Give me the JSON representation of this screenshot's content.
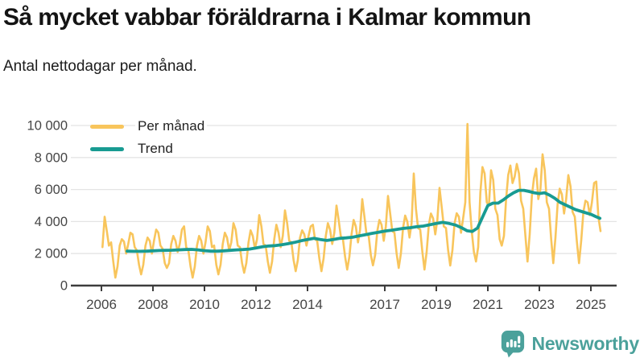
{
  "header": {
    "title": "Så mycket vabbar föräldrarna i Kalmar kommun",
    "subtitle": "Antal nettodagar per månad."
  },
  "footer": {
    "brand": "Newsworthy",
    "brand_color": "#4BA19B",
    "logo_icon": "bar-chart-speech-bubble-icon"
  },
  "chart_data": {
    "type": "line",
    "title": "Så mycket vabbar föräldrarna i Kalmar kommun",
    "subtitle": "Antal nettodagar per månad.",
    "xlabel": "",
    "ylabel": "",
    "ylim": [
      0,
      10000
    ],
    "yticks": [
      0,
      2000,
      4000,
      6000,
      8000,
      10000
    ],
    "ytick_labels": [
      "0",
      "2 000",
      "4 000",
      "6 000",
      "8 000",
      "10 000"
    ],
    "xticks": [
      2006,
      2008,
      2010,
      2012,
      2014,
      2017,
      2019,
      2021,
      2023,
      2025
    ],
    "xtick_labels": [
      "2006",
      "2008",
      "2010",
      "2012",
      "2014",
      "2017",
      "2019",
      "2021",
      "2023",
      "2025"
    ],
    "grid": "horizontal",
    "legend_position": "top-left",
    "style": {
      "grid_color": "#e4e4e4",
      "axis_color": "#3c3c3c",
      "tick_label_color": "#454545"
    },
    "series": [
      {
        "name": "Per månad",
        "color": "#F8C55C",
        "frequency": "monthly",
        "start_year": 2006,
        "start_month": 1,
        "values": [
          2400,
          4300,
          3400,
          2500,
          2700,
          1500,
          500,
          1200,
          2500,
          2900,
          2750,
          2000,
          2600,
          3300,
          3200,
          2400,
          2200,
          1300,
          700,
          1300,
          2500,
          3000,
          2800,
          2000,
          2800,
          3500,
          3300,
          2500,
          2300,
          1400,
          1100,
          1400,
          2600,
          3100,
          2800,
          2100,
          2600,
          3500,
          3700,
          2400,
          2200,
          1200,
          500,
          1200,
          2500,
          3100,
          2800,
          2000,
          2700,
          3700,
          3400,
          2400,
          2500,
          1300,
          700,
          1300,
          2600,
          3300,
          3000,
          2200,
          2700,
          3900,
          3500,
          2500,
          2400,
          1400,
          800,
          1400,
          2700,
          3450,
          3100,
          2300,
          2900,
          4400,
          3700,
          2600,
          2500,
          1500,
          800,
          1500,
          2900,
          3800,
          3300,
          2400,
          3100,
          4700,
          3900,
          2800,
          2700,
          1600,
          900,
          1600,
          3000,
          3450,
          3200,
          2500,
          3100,
          3700,
          3800,
          2900,
          2800,
          1700,
          900,
          1700,
          3100,
          3900,
          3500,
          2600,
          3300,
          5000,
          4100,
          3100,
          2900,
          1800,
          1000,
          1800,
          3200,
          4100,
          3700,
          2700,
          3500,
          5400,
          4300,
          3200,
          3100,
          1900,
          1260,
          1900,
          3400,
          4100,
          3800,
          2800,
          3700,
          5600,
          4500,
          3400,
          3300,
          2000,
          1100,
          2000,
          3600,
          4370,
          4000,
          3000,
          3900,
          7000,
          4800,
          3600,
          3500,
          2100,
          1000,
          2100,
          3800,
          4500,
          4200,
          3200,
          4100,
          6100,
          4900,
          3700,
          3600,
          2200,
          1250,
          2200,
          3900,
          4520,
          4300,
          3300,
          4200,
          5200,
          10100,
          5200,
          3400,
          2100,
          1500,
          2400,
          5800,
          7400,
          7000,
          5200,
          5000,
          7200,
          6600,
          4800,
          4400,
          2900,
          2500,
          3100,
          5400,
          6900,
          7500,
          6400,
          6800,
          7600,
          7000,
          5300,
          4800,
          3100,
          1500,
          3200,
          5600,
          6700,
          7300,
          5400,
          6000,
          8200,
          7200,
          5200,
          4800,
          2900,
          1400,
          3000,
          5100,
          6050,
          5700,
          4500,
          5400,
          6900,
          6200,
          4600,
          4300,
          2700,
          1400,
          2800,
          4600,
          5300,
          5200,
          4400,
          5200,
          6400,
          6500,
          4300,
          3400
        ]
      },
      {
        "name": "Trend",
        "color": "#189B92",
        "frequency": "smoothed",
        "points": [
          [
            2007.0,
            2150
          ],
          [
            2007.25,
            2140
          ],
          [
            2007.5,
            2140
          ],
          [
            2007.75,
            2150
          ],
          [
            2008.0,
            2170
          ],
          [
            2008.25,
            2190
          ],
          [
            2008.5,
            2200
          ],
          [
            2008.75,
            2210
          ],
          [
            2009.0,
            2230
          ],
          [
            2009.25,
            2250
          ],
          [
            2009.5,
            2260
          ],
          [
            2009.75,
            2230
          ],
          [
            2010.0,
            2180
          ],
          [
            2010.25,
            2150
          ],
          [
            2010.5,
            2150
          ],
          [
            2010.75,
            2170
          ],
          [
            2011.0,
            2200
          ],
          [
            2011.25,
            2230
          ],
          [
            2011.5,
            2250
          ],
          [
            2011.75,
            2280
          ],
          [
            2012.0,
            2350
          ],
          [
            2012.25,
            2420
          ],
          [
            2012.5,
            2470
          ],
          [
            2012.75,
            2500
          ],
          [
            2013.0,
            2550
          ],
          [
            2013.25,
            2620
          ],
          [
            2013.5,
            2700
          ],
          [
            2013.75,
            2800
          ],
          [
            2014.0,
            2880
          ],
          [
            2014.25,
            2950
          ],
          [
            2014.5,
            2880
          ],
          [
            2014.75,
            2820
          ],
          [
            2015.0,
            2880
          ],
          [
            2015.25,
            2950
          ],
          [
            2015.5,
            2980
          ],
          [
            2015.75,
            3020
          ],
          [
            2016.0,
            3100
          ],
          [
            2016.25,
            3180
          ],
          [
            2016.5,
            3260
          ],
          [
            2016.75,
            3330
          ],
          [
            2017.0,
            3400
          ],
          [
            2017.25,
            3450
          ],
          [
            2017.5,
            3520
          ],
          [
            2017.75,
            3580
          ],
          [
            2018.0,
            3620
          ],
          [
            2018.25,
            3680
          ],
          [
            2018.5,
            3720
          ],
          [
            2018.75,
            3800
          ],
          [
            2019.0,
            3880
          ],
          [
            2019.25,
            3950
          ],
          [
            2019.5,
            3880
          ],
          [
            2019.75,
            3780
          ],
          [
            2020.0,
            3600
          ],
          [
            2020.2,
            3420
          ],
          [
            2020.4,
            3380
          ],
          [
            2020.6,
            3600
          ],
          [
            2020.8,
            4300
          ],
          [
            2021.0,
            5000
          ],
          [
            2021.2,
            5150
          ],
          [
            2021.4,
            5150
          ],
          [
            2021.6,
            5350
          ],
          [
            2021.8,
            5600
          ],
          [
            2022.0,
            5800
          ],
          [
            2022.2,
            5950
          ],
          [
            2022.4,
            5950
          ],
          [
            2022.6,
            5880
          ],
          [
            2022.8,
            5800
          ],
          [
            2023.0,
            5750
          ],
          [
            2023.2,
            5800
          ],
          [
            2023.4,
            5650
          ],
          [
            2023.6,
            5450
          ],
          [
            2023.8,
            5200
          ],
          [
            2024.0,
            5050
          ],
          [
            2024.2,
            4900
          ],
          [
            2024.4,
            4750
          ],
          [
            2024.6,
            4650
          ],
          [
            2024.8,
            4550
          ],
          [
            2025.0,
            4450
          ],
          [
            2025.2,
            4300
          ],
          [
            2025.35,
            4200
          ]
        ]
      }
    ]
  }
}
